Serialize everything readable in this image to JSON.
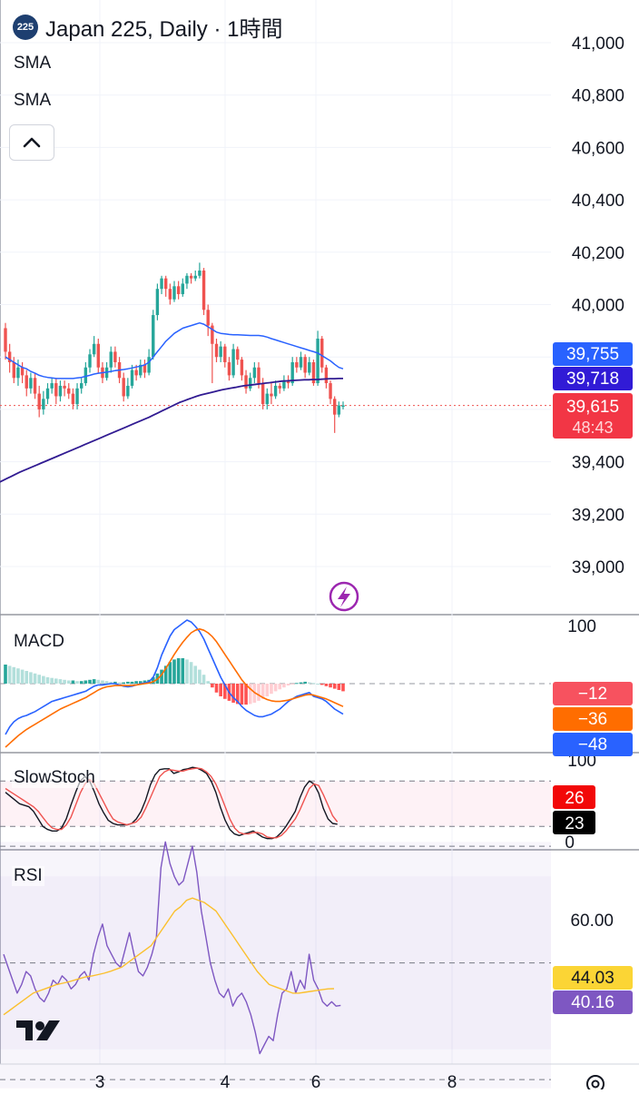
{
  "header": {
    "symbol_badge": "225",
    "title": "Japan 225, Daily · 1時間"
  },
  "indicators": {
    "sma1": "SMA",
    "sma2": "SMA"
  },
  "panes": {
    "macd": "MACD",
    "stoch": "SlowStoch",
    "rsi": "RSI"
  },
  "icons": {
    "collapse": "chevron-up-icon",
    "lightning": "lightning-icon",
    "logo": "tradingview-logo",
    "settings": "gear-icon"
  },
  "colors": {
    "up": "#26a69a",
    "down": "#ef5350",
    "sma_fast": "#2962ff",
    "sma_slow": "#311b92",
    "macd": "#2962ff",
    "signal": "#ff6d00",
    "stoch_k": "#131722",
    "stoch_d": "#ef5350",
    "rsi": "#7e57c2",
    "rsi_ma": "#fbc02d"
  },
  "chart_data": [
    {
      "type": "candlestick",
      "title": "Japan 225, Daily · 1時間",
      "ylim": [
        38850,
        41050
      ],
      "y_ticks": [
        "41,000",
        "40,800",
        "40,600",
        "40,400",
        "40,200",
        "40,000",
        "39,400",
        "39,200",
        "39,000"
      ],
      "x_ticks": [
        "3",
        "4",
        "6",
        "8"
      ],
      "last_price": "39,615",
      "countdown": "48:43",
      "sma_fast_last": "39,755",
      "sma_slow_last": "39,718",
      "candles": [
        [
          39910,
          39820,
          39930,
          39790
        ],
        [
          39820,
          39780,
          39850,
          39740
        ],
        [
          39780,
          39720,
          39800,
          39700
        ],
        [
          39720,
          39760,
          39790,
          39690
        ],
        [
          39760,
          39730,
          39780,
          39700
        ],
        [
          39730,
          39680,
          39750,
          39650
        ],
        [
          39680,
          39720,
          39740,
          39660
        ],
        [
          39720,
          39660,
          39740,
          39640
        ],
        [
          39660,
          39600,
          39690,
          39570
        ],
        [
          39600,
          39640,
          39670,
          39580
        ],
        [
          39640,
          39680,
          39700,
          39620
        ],
        [
          39680,
          39700,
          39720,
          39660
        ],
        [
          39700,
          39650,
          39720,
          39620
        ],
        [
          39650,
          39690,
          39710,
          39630
        ],
        [
          39690,
          39680,
          39710,
          39650
        ],
        [
          39680,
          39660,
          39700,
          39640
        ],
        [
          39660,
          39620,
          39680,
          39600
        ],
        [
          39620,
          39680,
          39700,
          39600
        ],
        [
          39680,
          39700,
          39720,
          39660
        ],
        [
          39700,
          39760,
          39780,
          39690
        ],
        [
          39760,
          39810,
          39830,
          39740
        ],
        [
          39810,
          39850,
          39880,
          39800
        ],
        [
          39850,
          39760,
          39870,
          39740
        ],
        [
          39760,
          39720,
          39780,
          39700
        ],
        [
          39720,
          39760,
          39780,
          39710
        ],
        [
          39760,
          39820,
          39840,
          39740
        ],
        [
          39820,
          39780,
          39840,
          39760
        ],
        [
          39780,
          39720,
          39800,
          39700
        ],
        [
          39720,
          39650,
          39740,
          39630
        ],
        [
          39650,
          39690,
          39720,
          39640
        ],
        [
          39690,
          39750,
          39770,
          39680
        ],
        [
          39750,
          39730,
          39770,
          39710
        ],
        [
          39730,
          39770,
          39790,
          39720
        ],
        [
          39770,
          39740,
          39790,
          39720
        ],
        [
          39740,
          39800,
          39830,
          39730
        ],
        [
          39800,
          39960,
          39980,
          39790
        ],
        [
          39960,
          40060,
          40080,
          39940
        ],
        [
          40060,
          40100,
          40110,
          40040
        ],
        [
          40100,
          40060,
          40110,
          40030
        ],
        [
          40060,
          40020,
          40080,
          40000
        ],
        [
          40020,
          40070,
          40090,
          40010
        ],
        [
          40070,
          40040,
          40090,
          40020
        ],
        [
          40040,
          40080,
          40100,
          40030
        ],
        [
          40080,
          40110,
          40120,
          40060
        ],
        [
          40110,
          40100,
          40120,
          40080
        ],
        [
          40100,
          40110,
          40130,
          40090
        ],
        [
          40110,
          40130,
          40160,
          40100
        ],
        [
          40130,
          39980,
          40140,
          39960
        ],
        [
          39980,
          39920,
          40000,
          39880
        ],
        [
          39920,
          39850,
          39930,
          39700
        ],
        [
          39850,
          39800,
          39870,
          39780
        ],
        [
          39800,
          39840,
          39860,
          39780
        ],
        [
          39840,
          39780,
          39850,
          39760
        ],
        [
          39780,
          39730,
          39800,
          39710
        ],
        [
          39730,
          39830,
          39850,
          39720
        ],
        [
          39830,
          39790,
          39840,
          39770
        ],
        [
          39790,
          39730,
          39800,
          39710
        ],
        [
          39730,
          39680,
          39750,
          39660
        ],
        [
          39680,
          39720,
          39740,
          39670
        ],
        [
          39720,
          39760,
          39780,
          39700
        ],
        [
          39760,
          39700,
          39780,
          39680
        ],
        [
          39700,
          39620,
          39720,
          39600
        ],
        [
          39620,
          39660,
          39680,
          39600
        ],
        [
          39660,
          39650,
          39700,
          39620
        ],
        [
          39650,
          39690,
          39710,
          39640
        ],
        [
          39690,
          39680,
          39700,
          39660
        ],
        [
          39680,
          39710,
          39730,
          39670
        ],
        [
          39710,
          39700,
          39730,
          39680
        ],
        [
          39700,
          39780,
          39800,
          39690
        ],
        [
          39780,
          39760,
          39800,
          39740
        ],
        [
          39760,
          39800,
          39820,
          39750
        ],
        [
          39800,
          39740,
          39810,
          39720
        ],
        [
          39740,
          39780,
          39800,
          39730
        ],
        [
          39780,
          39700,
          39790,
          39690
        ],
        [
          39700,
          39870,
          39900,
          39690
        ],
        [
          39870,
          39760,
          39880,
          39740
        ],
        [
          39760,
          39700,
          39770,
          39680
        ],
        [
          39700,
          39640,
          39710,
          39620
        ],
        [
          39640,
          39580,
          39650,
          39510
        ],
        [
          39580,
          39615,
          39630,
          39570
        ],
        [
          39615,
          39615,
          39630,
          39600
        ]
      ],
      "sma_fast": [
        39800,
        39790,
        39780,
        39770,
        39760,
        39755,
        39745,
        39738,
        39730,
        39725,
        39722,
        39720,
        39718,
        39718,
        39718,
        39718,
        39718,
        39720,
        39722,
        39726,
        39730,
        39735,
        39738,
        39740,
        39742,
        39745,
        39748,
        39750,
        39752,
        39755,
        39758,
        39762,
        39765,
        39770,
        39780,
        39800,
        39820,
        39840,
        39860,
        39875,
        39890,
        39900,
        39910,
        39915,
        39920,
        39925,
        39930,
        39925,
        39915,
        39905,
        39895,
        39890,
        39888,
        39886,
        39885,
        39885,
        39884,
        39883,
        39882,
        39882,
        39882,
        39880,
        39876,
        39870,
        39865,
        39860,
        39855,
        39850,
        39845,
        39840,
        39835,
        39830,
        39825,
        39820,
        39815,
        39805,
        39795,
        39785,
        39772,
        39760,
        39755
      ],
      "sma_slow": [
        39320,
        39328,
        39336,
        39344,
        39352,
        39360,
        39367,
        39374,
        39381,
        39388,
        39395,
        39402,
        39409,
        39416,
        39423,
        39430,
        39437,
        39444,
        39451,
        39458,
        39465,
        39472,
        39479,
        39486,
        39493,
        39500,
        39507,
        39514,
        39521,
        39528,
        39535,
        39542,
        39549,
        39556,
        39563,
        39570,
        39578,
        39586,
        39594,
        39602,
        39610,
        39618,
        39626,
        39632,
        39638,
        39644,
        39650,
        39655,
        39659,
        39663,
        39667,
        39671,
        39675,
        39678,
        39681,
        39684,
        39687,
        39690,
        39692,
        39694,
        39696,
        39698,
        39700,
        39702,
        39704,
        39706,
        39708,
        39709,
        39710,
        39711,
        39712,
        39713,
        39713,
        39714,
        39714,
        39715,
        39716,
        39717,
        39717,
        39718,
        39718
      ]
    },
    {
      "type": "bar",
      "name": "MACD",
      "ylim": [
        -105,
        110
      ],
      "y_ticks": [
        "100"
      ],
      "last_values": [
        "−12",
        "−36",
        "−48"
      ],
      "histogram": [
        30,
        28,
        26,
        24,
        22,
        20,
        18,
        16,
        14,
        12,
        10,
        9,
        8,
        7,
        6,
        5,
        5,
        4,
        4,
        5,
        6,
        7,
        6,
        5,
        4,
        3,
        3,
        2,
        2,
        3,
        3,
        4,
        4,
        5,
        6,
        10,
        16,
        22,
        28,
        34,
        38,
        40,
        40,
        38,
        34,
        28,
        22,
        14,
        4,
        -6,
        -14,
        -20,
        -24,
        -27,
        -30,
        -32,
        -33,
        -33,
        -32,
        -30,
        -27,
        -24,
        -20,
        -16,
        -12,
        -9,
        -6,
        -3,
        -1,
        1,
        2,
        3,
        2,
        1,
        0,
        -2,
        -4,
        -6,
        -8,
        -10,
        -12
      ],
      "macd": [
        -80,
        -68,
        -60,
        -55,
        -52,
        -50,
        -47,
        -44,
        -40,
        -36,
        -32,
        -28,
        -26,
        -24,
        -22,
        -20,
        -18,
        -16,
        -14,
        -12,
        -8,
        -4,
        -2,
        -2,
        -1,
        0,
        0,
        -2,
        -4,
        -5,
        -4,
        -2,
        0,
        1,
        3,
        10,
        25,
        45,
        60,
        75,
        85,
        90,
        95,
        100,
        97,
        90,
        82,
        70,
        55,
        40,
        25,
        10,
        -2,
        -14,
        -22,
        -28,
        -36,
        -42,
        -46,
        -50,
        -52,
        -52,
        -50,
        -48,
        -44,
        -40,
        -34,
        -28,
        -24,
        -20,
        -18,
        -16,
        -14,
        -20,
        -22,
        -24,
        -28,
        -34,
        -40,
        -44,
        -48
      ],
      "signal": [
        -100,
        -94,
        -88,
        -82,
        -77,
        -72,
        -68,
        -64,
        -60,
        -56,
        -52,
        -48,
        -44,
        -40,
        -37,
        -34,
        -31,
        -28,
        -25,
        -22,
        -18,
        -14,
        -10,
        -7,
        -5,
        -4,
        -3,
        -3,
        -3,
        -3,
        -3,
        -2,
        -1,
        0,
        1,
        3,
        7,
        14,
        24,
        35,
        46,
        56,
        65,
        73,
        80,
        84,
        86,
        84,
        80,
        74,
        66,
        56,
        46,
        36,
        26,
        16,
        6,
        -2,
        -8,
        -14,
        -18,
        -22,
        -25,
        -27,
        -28,
        -28,
        -27,
        -26,
        -24,
        -22,
        -20,
        -18,
        -17,
        -18,
        -20,
        -22,
        -24,
        -27,
        -30,
        -33,
        -36
      ]
    },
    {
      "type": "line",
      "name": "SlowStoch",
      "ylim": [
        0,
        100
      ],
      "y_ticks": [
        "100",
        "0"
      ],
      "last_values": [
        "26",
        "23"
      ],
      "k": [
        65,
        60,
        55,
        50,
        48,
        46,
        40,
        30,
        20,
        16,
        14,
        14,
        18,
        30,
        48,
        65,
        80,
        86,
        80,
        66,
        50,
        38,
        28,
        24,
        22,
        22,
        22,
        24,
        30,
        40,
        55,
        75,
        88,
        95,
        96,
        96,
        90,
        92,
        95,
        96,
        98,
        97,
        94,
        90,
        80,
        65,
        45,
        28,
        16,
        10,
        8,
        10,
        12,
        14,
        10,
        6,
        4,
        4,
        6,
        12,
        20,
        30,
        40,
        58,
        72,
        80,
        76,
        64,
        44,
        30,
        24,
        23
      ],
      "d": [
        70,
        66,
        62,
        58,
        54,
        50,
        46,
        40,
        32,
        24,
        18,
        16,
        16,
        22,
        32,
        48,
        64,
        76,
        82,
        76,
        64,
        52,
        40,
        30,
        26,
        24,
        22,
        24,
        26,
        32,
        44,
        58,
        72,
        86,
        92,
        95,
        94,
        93,
        93,
        95,
        96,
        97,
        96,
        92,
        86,
        76,
        62,
        46,
        30,
        18,
        12,
        10,
        10,
        12,
        12,
        10,
        6,
        5,
        5,
        8,
        14,
        22,
        30,
        42,
        56,
        70,
        76,
        74,
        62,
        48,
        34,
        26
      ]
    },
    {
      "type": "line",
      "name": "RSI",
      "ylim": [
        21,
        79
      ],
      "y_ticks": [
        "60.00"
      ],
      "last_values": [
        "44.03",
        "40.16"
      ],
      "rsi": [
        52,
        49,
        46,
        43,
        45,
        48,
        47,
        44,
        42,
        41,
        43,
        46,
        45,
        47,
        46,
        44,
        45,
        47,
        48,
        46,
        52,
        56,
        59,
        54,
        52,
        50,
        49,
        53,
        57,
        52,
        48,
        47,
        49,
        52,
        56,
        72,
        78,
        73,
        70,
        68,
        69,
        73,
        77,
        71,
        62,
        56,
        50,
        46,
        43,
        42,
        44,
        40,
        42,
        43,
        41,
        38,
        34,
        29,
        31,
        33,
        32,
        38,
        43,
        44,
        48,
        43,
        46,
        44,
        52,
        46,
        44,
        41,
        40,
        41,
        40,
        40.16
      ],
      "rsi_ma": [
        38,
        39,
        40,
        41,
        42,
        43,
        43.5,
        44,
        44.5,
        45,
        45.3,
        45.6,
        46,
        46.4,
        46.8,
        47,
        47.3,
        47.6,
        48,
        48.5,
        49,
        50,
        51,
        52,
        53,
        54,
        56,
        58,
        60,
        62,
        63,
        64.5,
        65,
        64.5,
        64,
        63,
        62,
        60,
        58,
        56,
        54,
        52,
        50,
        48,
        46.5,
        45,
        44.5,
        44,
        43.5,
        43,
        43,
        43.2,
        43.4,
        43.6,
        43.8,
        44,
        44.03
      ]
    }
  ]
}
